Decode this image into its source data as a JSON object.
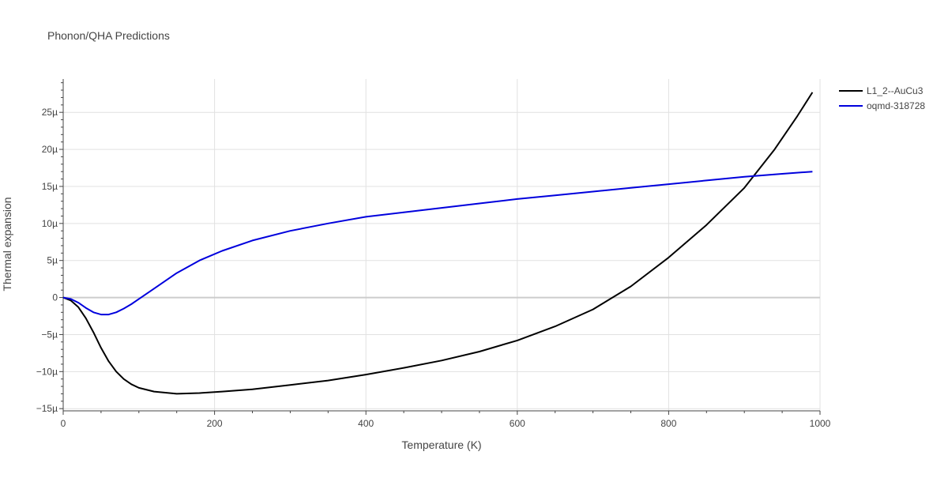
{
  "title": "Phonon/QHA Predictions",
  "chart_data": {
    "type": "line",
    "title": "Phonon/QHA Predictions",
    "xlabel": "Temperature (K)",
    "ylabel": "Thermal expansion",
    "xlim": [
      0,
      1000
    ],
    "ylim": [
      -15.3,
      29.5
    ],
    "x_ticks": [
      0,
      200,
      400,
      600,
      800,
      1000
    ],
    "x_tick_labels": [
      "0",
      "200",
      "400",
      "600",
      "800",
      "1000"
    ],
    "y_ticks": [
      -15,
      -10,
      -5,
      0,
      5,
      10,
      15,
      20,
      25
    ],
    "y_tick_labels": [
      "−15µ",
      "−10µ",
      "−5µ",
      "0",
      "5µ",
      "10µ",
      "15µ",
      "20µ",
      "25µ"
    ],
    "grid": true,
    "legend_position": "top-right",
    "series": [
      {
        "name": "L1_2--AuCu3",
        "color": "#000000",
        "x": [
          0,
          10,
          20,
          30,
          40,
          50,
          60,
          70,
          80,
          90,
          100,
          120,
          150,
          180,
          210,
          250,
          300,
          350,
          400,
          450,
          500,
          550,
          600,
          650,
          700,
          750,
          800,
          850,
          900,
          940,
          970,
          990
        ],
        "y": [
          0,
          -0.4,
          -1.3,
          -2.8,
          -4.7,
          -6.8,
          -8.6,
          -10.0,
          -11.0,
          -11.7,
          -12.2,
          -12.7,
          -13.0,
          -12.9,
          -12.7,
          -12.4,
          -11.8,
          -11.2,
          -10.4,
          -9.5,
          -8.5,
          -7.3,
          -5.8,
          -3.9,
          -1.6,
          1.5,
          5.4,
          9.8,
          14.8,
          20.0,
          24.5,
          27.7
        ]
      },
      {
        "name": "oqmd-318728",
        "color": "#0000dd",
        "x": [
          0,
          10,
          20,
          30,
          40,
          50,
          60,
          70,
          80,
          90,
          100,
          120,
          150,
          180,
          210,
          250,
          300,
          350,
          400,
          450,
          500,
          550,
          600,
          650,
          700,
          750,
          800,
          850,
          900,
          950,
          990
        ],
        "y": [
          0,
          -0.2,
          -0.7,
          -1.4,
          -2.0,
          -2.3,
          -2.3,
          -2.0,
          -1.5,
          -0.9,
          -0.2,
          1.2,
          3.3,
          5.0,
          6.3,
          7.7,
          9.0,
          10.0,
          10.9,
          11.5,
          12.1,
          12.7,
          13.3,
          13.8,
          14.3,
          14.8,
          15.3,
          15.8,
          16.3,
          16.7,
          17.0
        ]
      }
    ]
  }
}
